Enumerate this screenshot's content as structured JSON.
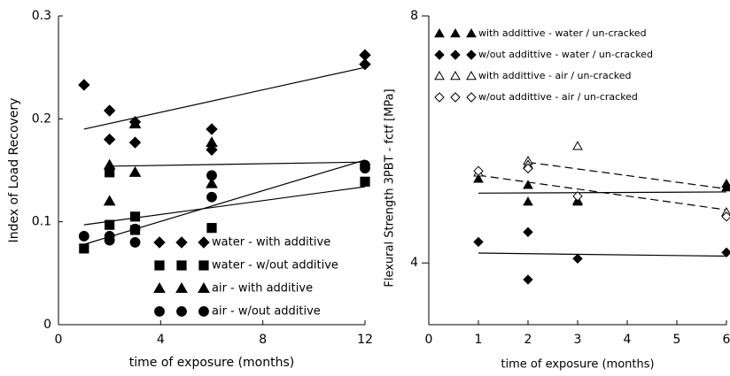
{
  "chart_data": [
    {
      "type": "scatter",
      "xlabel": "time of exposure (months)",
      "ylabel": "Index of Load Recovery",
      "xlim": [
        0,
        12
      ],
      "xticks": [
        0,
        4,
        8,
        12
      ],
      "ylim": [
        0,
        0.3
      ],
      "yticks": [
        0,
        0.1,
        0.2,
        0.3
      ],
      "legend": "lower center",
      "color": "#000000",
      "series": [
        {
          "name": "water - with additive",
          "marker": "diamond",
          "filled": true,
          "x": [
            1,
            2,
            2,
            3,
            3,
            6,
            6,
            12,
            12
          ],
          "values": [
            0.233,
            0.208,
            0.18,
            0.197,
            0.177,
            0.19,
            0.17,
            0.262,
            0.253
          ]
        },
        {
          "name": "water - w/out additive",
          "marker": "square",
          "filled": true,
          "x": [
            1,
            2,
            2,
            3,
            3,
            6,
            12
          ],
          "values": [
            0.074,
            0.148,
            0.097,
            0.105,
            0.092,
            0.094,
            0.139
          ]
        },
        {
          "name": "air - with additive",
          "marker": "triangle",
          "filled": true,
          "x": [
            2,
            2,
            3,
            3,
            6,
            6
          ],
          "values": [
            0.155,
            0.12,
            0.195,
            0.148,
            0.177,
            0.137
          ]
        },
        {
          "name": "air - w/out additive",
          "marker": "circle",
          "filled": true,
          "x": [
            1,
            2,
            2,
            3,
            3,
            6,
            6,
            12,
            12
          ],
          "values": [
            0.086,
            0.086,
            0.082,
            0.093,
            0.08,
            0.145,
            0.124,
            0.152,
            0.155
          ]
        }
      ],
      "trend_lines": [
        {
          "x": [
            1,
            12
          ],
          "values": [
            0.19,
            0.25
          ],
          "dashed": false
        },
        {
          "x": [
            2,
            12
          ],
          "values": [
            0.154,
            0.158
          ],
          "dashed": false
        },
        {
          "x": [
            1,
            12
          ],
          "values": [
            0.097,
            0.134
          ],
          "dashed": false
        },
        {
          "x": [
            1,
            12
          ],
          "values": [
            0.078,
            0.16
          ],
          "dashed": false
        }
      ]
    },
    {
      "type": "scatter",
      "xlabel": "time of exposure (months)",
      "ylabel": "Flexural Strength 3PBT - fctf [MPa]",
      "xlim": [
        0,
        6
      ],
      "xticks": [
        0,
        1,
        2,
        3,
        4,
        5,
        6
      ],
      "ylim": [
        3,
        8
      ],
      "yticks": [
        4,
        8
      ],
      "legend": "upper left",
      "color": "#000000",
      "series": [
        {
          "name": "with addittive - water / un-cracked",
          "marker": "triangle",
          "filled": true,
          "x": [
            1,
            2,
            2,
            3,
            3,
            6,
            6
          ],
          "values": [
            5.36,
            5.26,
            4.99,
            4.99,
            5.01,
            5.28,
            5.22
          ]
        },
        {
          "name": "w/out addittive - water / un-cracked",
          "marker": "diamond",
          "filled": true,
          "x": [
            1,
            2,
            2,
            3,
            6
          ],
          "values": [
            4.34,
            4.5,
            3.73,
            4.07,
            4.17
          ]
        },
        {
          "name": "with addittive - air / un-cracked",
          "marker": "triangle",
          "filled": false,
          "x": [
            1,
            2,
            2,
            3,
            6
          ],
          "values": [
            5.46,
            5.65,
            5.59,
            5.89,
            4.82
          ]
        },
        {
          "name": "w/out addittive - air / un-cracked",
          "marker": "diamond",
          "filled": false,
          "x": [
            1,
            2,
            3,
            6
          ],
          "values": [
            5.49,
            5.53,
            5.08,
            4.75
          ]
        }
      ],
      "trend_lines": [
        {
          "x": [
            1,
            6
          ],
          "values": [
            5.13,
            5.15
          ],
          "dashed": false
        },
        {
          "x": [
            1,
            6
          ],
          "values": [
            4.16,
            4.11
          ],
          "dashed": false
        },
        {
          "x": [
            1,
            6
          ],
          "values": [
            5.42,
            4.86
          ],
          "dashed": true
        },
        {
          "x": [
            2,
            6
          ],
          "values": [
            5.63,
            5.2
          ],
          "dashed": true
        }
      ]
    }
  ]
}
